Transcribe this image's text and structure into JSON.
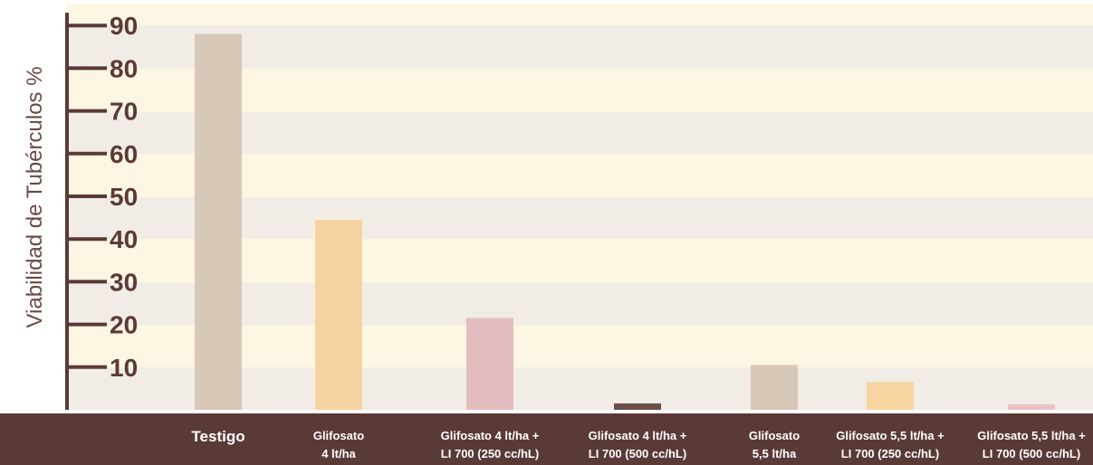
{
  "chart_data": {
    "type": "bar",
    "title": "",
    "xlabel": "",
    "ylabel": "Viabilidad de Tubérculos %",
    "ylim": [
      0,
      92
    ],
    "yticks": [
      10,
      20,
      30,
      40,
      50,
      60,
      70,
      80,
      90
    ],
    "grid": true,
    "categories": [
      [
        "Testigo"
      ],
      [
        "Glifosato",
        "4 lt/ha"
      ],
      [
        "Glifosato 4 lt/ha +",
        "LI 700 (250 cc/hL)"
      ],
      [
        "Glifosato 4 lt/ha +",
        "LI 700 (500 cc/hL)"
      ],
      [
        "Glifosato",
        "5,5 lt/ha"
      ],
      [
        "Glifosato 5,5 lt/ha +",
        "LI 700 (250 cc/hL)"
      ],
      [
        "Glifosato 5,5 lt/ha +",
        "LI 700 (500 cc/hL)"
      ]
    ],
    "values": [
      88,
      44.5,
      21.5,
      1.5,
      10.5,
      6.5,
      1.3
    ],
    "bar_colors": [
      "#d8c8b8",
      "#f5d3a0",
      "#e4bcbf",
      "#6e4e48",
      "#d8c8b8",
      "#f6d5a1",
      "#e8c2c5"
    ],
    "colors": {
      "band_light": "#fdf6e2",
      "band_dark": "#f1ede6",
      "axis": "#5a3a36",
      "footer_bg": "#5a3a37",
      "footer_text": "#ffffff",
      "ylabel": "#6a4a45"
    }
  }
}
